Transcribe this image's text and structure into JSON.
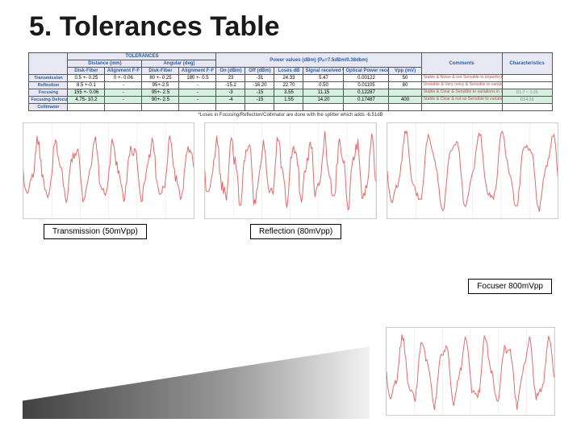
{
  "title": "5. Tolerances Table",
  "table": {
    "group_headers": {
      "tolerances": "TOLERANCES",
      "distance": "Distance (mm)",
      "angular": "Angular (deg)",
      "power": "Power values (dBm) (Pᵢₙ=7.5dBm/0.38dbm)"
    },
    "cols": {
      "c1": "Disk-Fiber",
      "c2": "Alignment F-F",
      "c3": "Disk-Fiber",
      "c4": "Alignment F-F",
      "c5": "On (dBm)",
      "c6": "Off (dBm)",
      "c7": "Loses dB",
      "c8": "Signal received %",
      "c9": "Optical Power received (mW/μW)",
      "c10": "Vpp (mV)",
      "c11": "Comments",
      "c12": "Characteristics"
    },
    "rows": [
      {
        "label": "Transmission",
        "v": [
          "0.5 +- 0.25",
          "0 +- 0.06",
          "80 +- 0.25",
          "180 +- 0.5",
          "23",
          "-31",
          "24.33",
          "5.47",
          "0.00122",
          "50",
          "Stable & Noise & not Sensible to imperfections in disk",
          ""
        ]
      },
      {
        "label": "Reflection",
        "v": [
          "8.5 +-0.1",
          "-",
          "95+-2.5",
          "-",
          "-15.2",
          "-16.20",
          "22.70",
          "0.50",
          "0.01105",
          "80",
          "Unstable & Very noisy & Sensible to variations in disk",
          ""
        ]
      },
      {
        "label": "Focusing",
        "v": [
          "155 +- 0.06",
          "-",
          "95+- 2.5",
          "-",
          "-3",
          "-15",
          "3.55",
          "11.15",
          "0.12287",
          "",
          "Stable & Clear & Sensible to variations in disk",
          "D1:7 ~ 1:25"
        ]
      },
      {
        "label": "Focusing Defocused",
        "v": [
          "4.75- 10.2",
          "-",
          "90+- 2.5",
          "-",
          "-4",
          "-15",
          "1.55",
          "14.20",
          "0.17487",
          "400",
          "Stable & Clear & not as Sensible to variations in disk & Better tolerance",
          "D14:29"
        ]
      },
      {
        "label": "Collimator",
        "v": [
          "",
          "",
          "",
          "",
          "",
          "",
          "",
          "",
          "",
          "",
          "",
          ""
        ]
      }
    ],
    "footer": "*Loses in Focusing/Reflection/Collimator are done with the splitter which adds -6.51dB",
    "header_bg": "#e8e8f4",
    "header_color": "#2a5fa5",
    "green_row_bg": "#d6f0df",
    "comment_color": "#c05050"
  },
  "labels": {
    "focuser": "Focuser 800mVpp",
    "transmission": "Transmission (50mVpp)",
    "reflection": "Reflection (80mVpp)"
  },
  "waves": {
    "stroke": "#e46a6a",
    "grid": "#e0e0e0",
    "bg": "#ffffff"
  }
}
